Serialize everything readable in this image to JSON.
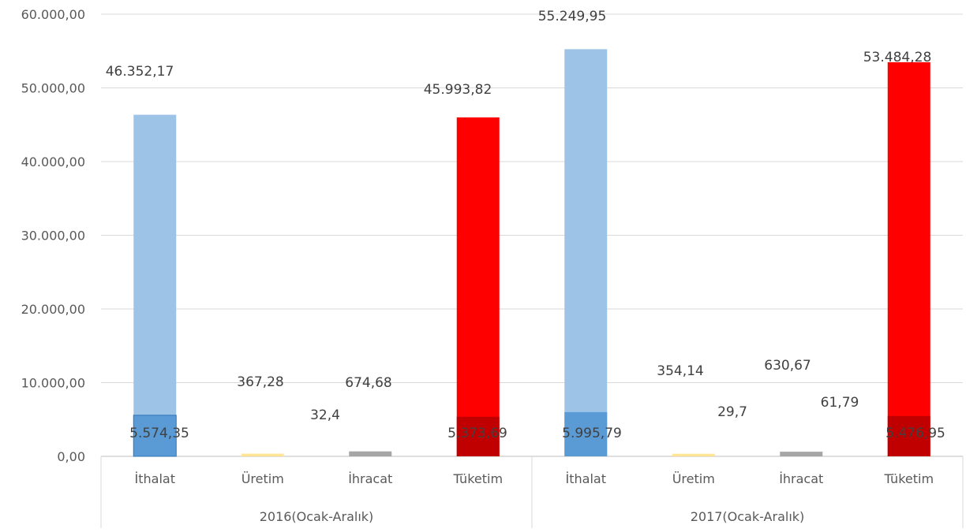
{
  "chart_data": {
    "type": "bar",
    "stacked_overlay": true,
    "y_ticks": [
      "0,00",
      "10.000,00",
      "20.000,00",
      "30.000,00",
      "40.000,00",
      "50.000,00",
      "60.000,00"
    ],
    "ylim": [
      0,
      60000
    ],
    "grid": true,
    "groups": [
      {
        "label": "2016(Ocak-Aralık)",
        "categories": [
          {
            "name": "İthalat",
            "total": 46352.17,
            "total_label": "46.352,17",
            "inner": 5574.35,
            "inner_label": "5.574,35",
            "color": "#9dc3e6",
            "inner_color": "#5b9bd5"
          },
          {
            "name": "Üretim",
            "total": 367.28,
            "total_label": "367,28",
            "inner": 32.4,
            "inner_label": "32,4",
            "color": "#ffe699",
            "inner_color": "#ffd966"
          },
          {
            "name": "İhracat",
            "total": 674.68,
            "total_label": "674,68",
            "inner": 0,
            "inner_label": "",
            "color": "#a6a6a6",
            "inner_color": "#a6a6a6"
          },
          {
            "name": "Tüketim",
            "total": 45993.82,
            "total_label": "45.993,82",
            "inner": 5373.69,
            "inner_label": "5.373,69",
            "color": "#ff0000",
            "inner_color": "#c00000"
          }
        ]
      },
      {
        "label": "2017(Ocak-Aralık)",
        "categories": [
          {
            "name": "İthalat",
            "total": 55249.95,
            "total_label": "55.249,95",
            "inner": 5995.79,
            "inner_label": "5.995,79",
            "color": "#9dc3e6",
            "inner_color": "#5b9bd5"
          },
          {
            "name": "Üretim",
            "total": 354.14,
            "total_label": "354,14",
            "inner": 29.7,
            "inner_label": "29,7",
            "color": "#ffe699",
            "inner_color": "#ffd966"
          },
          {
            "name": "İhracat",
            "total": 630.67,
            "total_label": "630,67",
            "inner": 61.79,
            "inner_label": "61,79",
            "color": "#a6a6a6",
            "inner_color": "#a6a6a6"
          },
          {
            "name": "Tüketim",
            "total": 53484.28,
            "total_label": "53.484,28",
            "inner": 5476.95,
            "inner_label": "5.476,95",
            "color": "#ff0000",
            "inner_color": "#c00000"
          }
        ]
      }
    ]
  }
}
